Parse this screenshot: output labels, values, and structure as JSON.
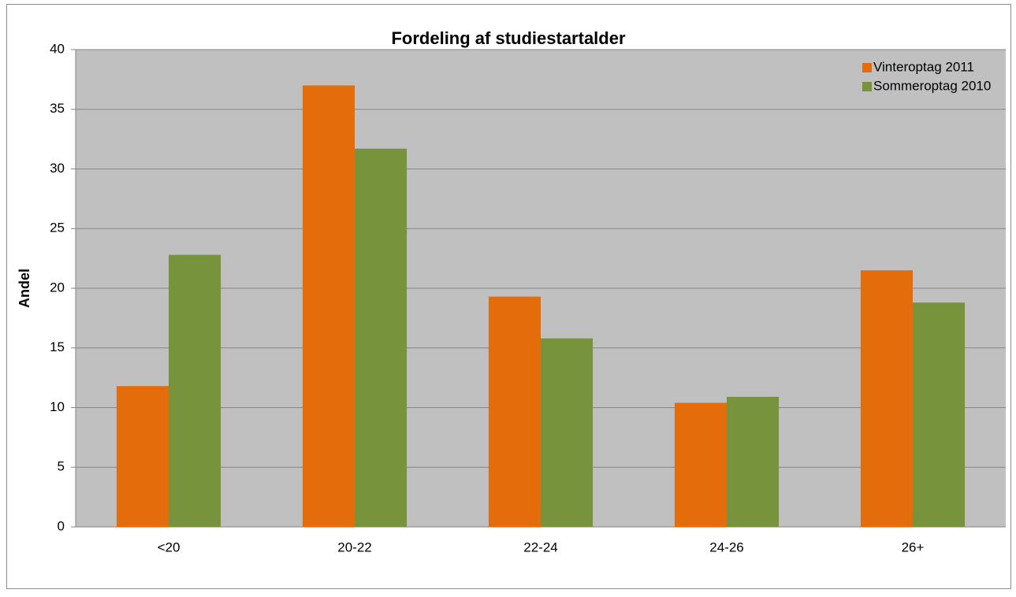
{
  "chart_data": {
    "type": "bar",
    "title": "Fordeling af studiestartalder",
    "y_label": "Andel",
    "categories": [
      "<20",
      "20-22",
      "22-24",
      "24-26",
      "26+"
    ],
    "series": [
      {
        "name": "Vinteroptag 2011",
        "color": "#e46c0a",
        "values": [
          11.8,
          37,
          19.3,
          10.4,
          21.5
        ]
      },
      {
        "name": "Sommeroptag 2010",
        "color": "#77933c",
        "values": [
          22.8,
          31.7,
          15.8,
          10.9,
          18.8
        ]
      }
    ],
    "ylim": [
      0,
      40
    ],
    "yticks": [
      0,
      5,
      10,
      15,
      20,
      25,
      30,
      35,
      40
    ],
    "grid": true,
    "legend": "top-right"
  }
}
